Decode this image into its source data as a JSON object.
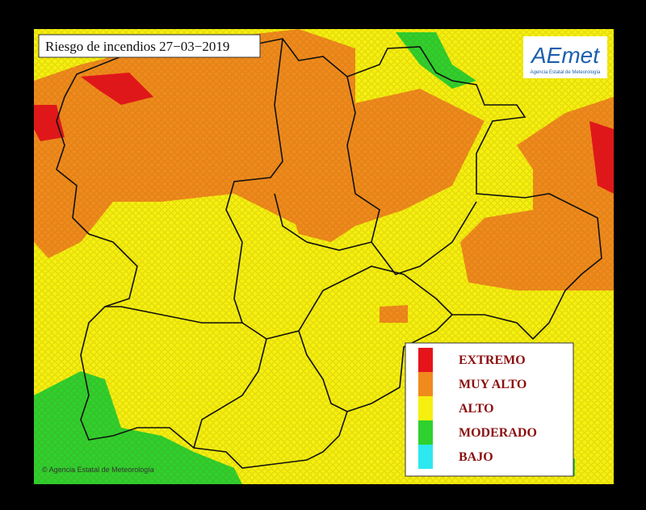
{
  "title": "Riesgo de incendios 27−03−2019",
  "logo": {
    "text": "AEmet",
    "subtitle": "Agencia Estatal de Meteorología"
  },
  "legend": [
    {
      "label": "EXTREMO",
      "color": "#e5141b"
    },
    {
      "label": "MUY ALTO",
      "color": "#f08a1c"
    },
    {
      "label": "ALTO",
      "color": "#f5f00f"
    },
    {
      "label": "MODERADO",
      "color": "#2ed12e"
    },
    {
      "label": "BAJO",
      "color": "#2ee8f0"
    }
  ],
  "credit": "© Agencia Estatal de Meteorología"
}
